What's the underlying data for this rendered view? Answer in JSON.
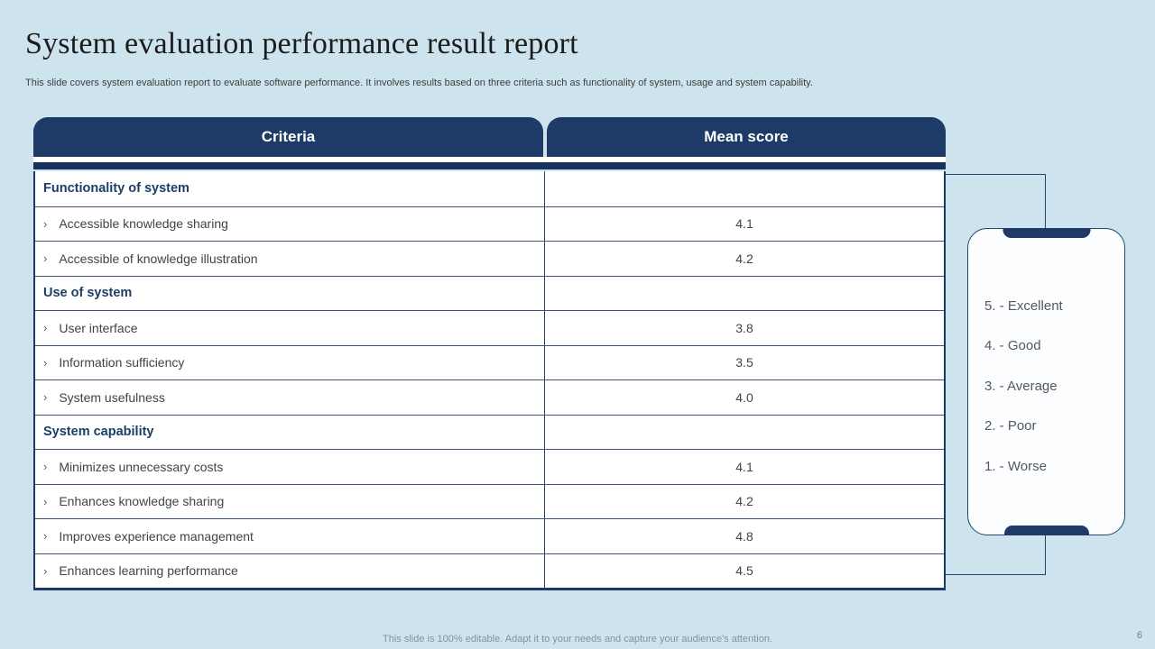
{
  "slide": {
    "title": "System evaluation performance result report",
    "subtitle": "This slide covers system evaluation report to evaluate software performance. It involves results based on three criteria such as functionality of system, usage and system capability.",
    "footer": "This slide is 100% editable. Adapt it to your needs and capture your audience's attention.",
    "page_number": "6"
  },
  "table": {
    "columns": {
      "criteria": "Criteria",
      "mean_score": "Mean score"
    },
    "rows": [
      {
        "type": "section",
        "label": "Functionality of system",
        "score": ""
      },
      {
        "type": "item",
        "bullet": "›",
        "label": "Accessible knowledge sharing",
        "score": "4.1"
      },
      {
        "type": "item",
        "bullet": "›",
        "label": "Accessible of knowledge illustration",
        "score": "4.2"
      },
      {
        "type": "section",
        "label": "Use of system",
        "score": ""
      },
      {
        "type": "item",
        "bullet": "›",
        "label": "User interface",
        "score": "3.8"
      },
      {
        "type": "item",
        "bullet": "›",
        "label": "Information sufficiency",
        "score": "3.5"
      },
      {
        "type": "item",
        "bullet": "›",
        "label": "System usefulness",
        "score": "4.0"
      },
      {
        "type": "section",
        "label": "System capability",
        "score": ""
      },
      {
        "type": "item",
        "bullet": "›",
        "label": "Minimizes unnecessary costs",
        "score": "4.1"
      },
      {
        "type": "item",
        "bullet": "›",
        "label": "Enhances knowledge sharing",
        "score": "4.2"
      },
      {
        "type": "item",
        "bullet": "›",
        "label": "Improves experience management",
        "score": "4.8"
      },
      {
        "type": "item",
        "bullet": "›",
        "label": "Enhances learning performance",
        "score": "4.5"
      }
    ]
  },
  "legend": {
    "items": [
      "5. - Excellent",
      "4. - Good",
      "3. - Average",
      "2. - Poor",
      "1. - Worse"
    ]
  },
  "colors": {
    "background": "#cde4ee",
    "navy": "#1e3a66",
    "stripe": "#17335d",
    "panel_bg": "#fbfdff",
    "body_text": "#3f4449",
    "section_text": "#1c3e68",
    "footer_text": "#82929a"
  }
}
